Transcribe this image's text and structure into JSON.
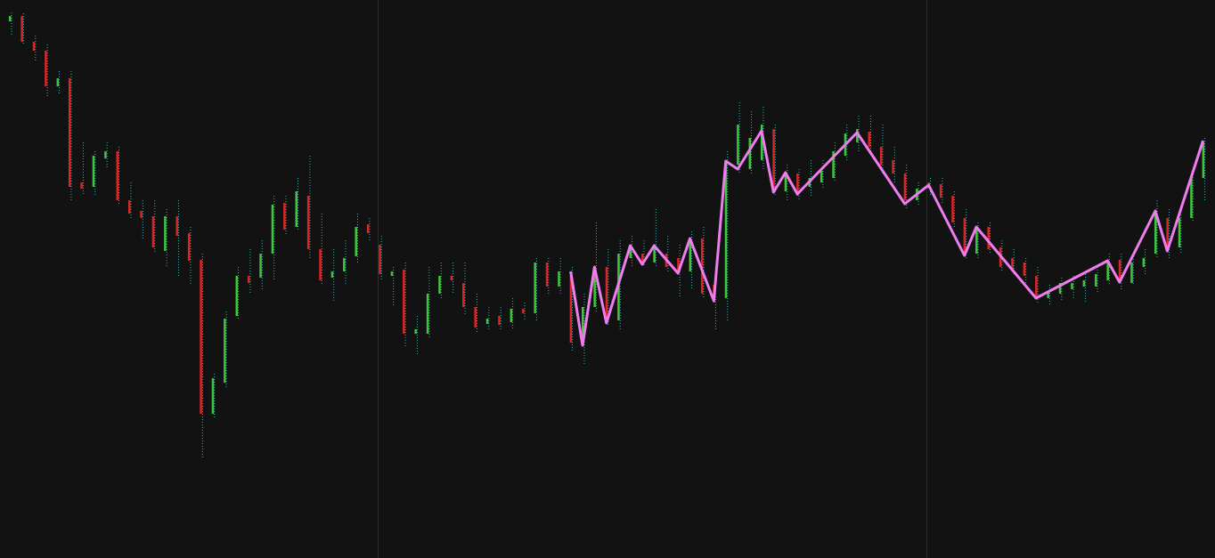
{
  "chart_data": {
    "type": "candlestick",
    "x": [
      0,
      1,
      2,
      3,
      4,
      5,
      6,
      7,
      8,
      9,
      10,
      11,
      12,
      13,
      14,
      15,
      16,
      17,
      18,
      19,
      20,
      21,
      22,
      23,
      24,
      25,
      26,
      27,
      28,
      29,
      30,
      31,
      32,
      33,
      34,
      35,
      36,
      37,
      38,
      39,
      40,
      41,
      42,
      43,
      44,
      45,
      46,
      47,
      48,
      49,
      50,
      51,
      52,
      53,
      54,
      55,
      56,
      57,
      58,
      59,
      60,
      61,
      62,
      63,
      64,
      65,
      66,
      67,
      68,
      69,
      70,
      71,
      72,
      73,
      74,
      75,
      76,
      77,
      78,
      79,
      80,
      81,
      82,
      83,
      84,
      85,
      86,
      87,
      88,
      89,
      90,
      91,
      92,
      93,
      94,
      95,
      96,
      97,
      98,
      99,
      100
    ],
    "open": [
      603,
      609,
      580,
      570,
      530,
      539,
      422,
      417,
      449,
      457,
      402,
      390,
      384,
      345,
      384,
      365,
      335,
      162,
      197,
      272,
      317,
      315,
      342,
      399,
      372,
      407,
      347,
      315,
      322,
      339,
      375,
      352,
      317,
      324,
      252,
      252,
      297,
      317,
      309,
      282,
      263,
      272,
      265,
      280,
      275,
      332,
      305,
      317,
      242,
      282,
      327,
      267,
      337,
      342,
      332,
      342,
      337,
      322,
      359,
      307,
      292,
      442,
      437,
      447,
      482,
      412,
      432,
      417,
      422,
      427,
      452,
      467,
      479,
      462,
      447,
      432,
      402,
      422,
      420,
      407,
      382,
      342,
      372,
      349,
      337,
      332,
      317,
      292,
      297,
      302,
      305,
      305,
      312,
      335,
      309,
      327,
      342,
      382,
      349,
      382,
      427
    ],
    "high": [
      613,
      612,
      587,
      577,
      547,
      547,
      467,
      457,
      467,
      462,
      422,
      402,
      402,
      392,
      402,
      372,
      342,
      207,
      277,
      327,
      347,
      357,
      407,
      407,
      427,
      452,
      387,
      347,
      357,
      387,
      382,
      362,
      327,
      332,
      272,
      327,
      332,
      332,
      332,
      297,
      282,
      282,
      292,
      287,
      337,
      337,
      337,
      327,
      297,
      377,
      347,
      357,
      362,
      357,
      392,
      362,
      352,
      367,
      372,
      327,
      457,
      512,
      502,
      507,
      487,
      442,
      437,
      447,
      447,
      467,
      487,
      497,
      497,
      487,
      462,
      442,
      422,
      427,
      427,
      412,
      392,
      377,
      377,
      357,
      347,
      337,
      327,
      307,
      315,
      317,
      322,
      327,
      342,
      342,
      342,
      347,
      402,
      392,
      392,
      437,
      472
    ],
    "low": [
      587,
      577,
      557,
      517,
      522,
      402,
      407,
      407,
      437,
      397,
      382,
      357,
      342,
      327,
      317,
      307,
      112,
      157,
      192,
      267,
      297,
      302,
      312,
      362,
      367,
      337,
      307,
      287,
      307,
      332,
      357,
      312,
      282,
      237,
      227,
      247,
      292,
      297,
      272,
      252,
      257,
      257,
      257,
      267,
      267,
      297,
      297,
      232,
      217,
      277,
      262,
      257,
      327,
      327,
      327,
      322,
      292,
      302,
      292,
      257,
      267,
      432,
      432,
      437,
      407,
      402,
      402,
      407,
      415,
      422,
      447,
      457,
      452,
      432,
      422,
      392,
      397,
      407,
      397,
      372,
      337,
      337,
      342,
      322,
      317,
      307,
      287,
      285,
      289,
      292,
      287,
      297,
      307,
      302,
      307,
      317,
      337,
      337,
      342,
      377,
      402
    ],
    "close": [
      609,
      580,
      570,
      530,
      539,
      417,
      415,
      452,
      457,
      402,
      387,
      382,
      349,
      384,
      362,
      334,
      162,
      202,
      269,
      317,
      309,
      342,
      397,
      369,
      412,
      347,
      312,
      322,
      337,
      372,
      365,
      319,
      322,
      252,
      257,
      297,
      317,
      312,
      282,
      259,
      269,
      262,
      280,
      275,
      332,
      305,
      322,
      242,
      282,
      327,
      267,
      342,
      347,
      332,
      352,
      327,
      322,
      357,
      297,
      287,
      447,
      487,
      472,
      487,
      412,
      432,
      407,
      427,
      435,
      457,
      477,
      482,
      462,
      442,
      432,
      402,
      415,
      415,
      405,
      377,
      342,
      372,
      347,
      327,
      322,
      317,
      292,
      299,
      309,
      309,
      312,
      319,
      332,
      309,
      332,
      337,
      387,
      345,
      382,
      427,
      467
    ],
    "up_color": "#3cc83c",
    "down_color": "#e02424",
    "wick_color": "#2ab8b8",
    "xlim": [
      -0.82,
      101
    ],
    "ylim": [
      0,
      627
    ],
    "overlay": {
      "type": "line",
      "color": "#f07cf0",
      "x": [
        47,
        48,
        49,
        50,
        52,
        53,
        54,
        56,
        57,
        59,
        60,
        61,
        63,
        64,
        65,
        66,
        71,
        75,
        77,
        80,
        81,
        86,
        92,
        93,
        96,
        97,
        100
      ],
      "values": [
        322,
        239,
        327,
        264,
        351,
        330,
        351,
        320,
        359,
        289,
        446,
        437,
        480,
        411,
        433,
        409,
        478,
        398,
        419,
        340,
        372,
        292,
        334,
        310,
        390,
        345,
        469
      ]
    }
  }
}
